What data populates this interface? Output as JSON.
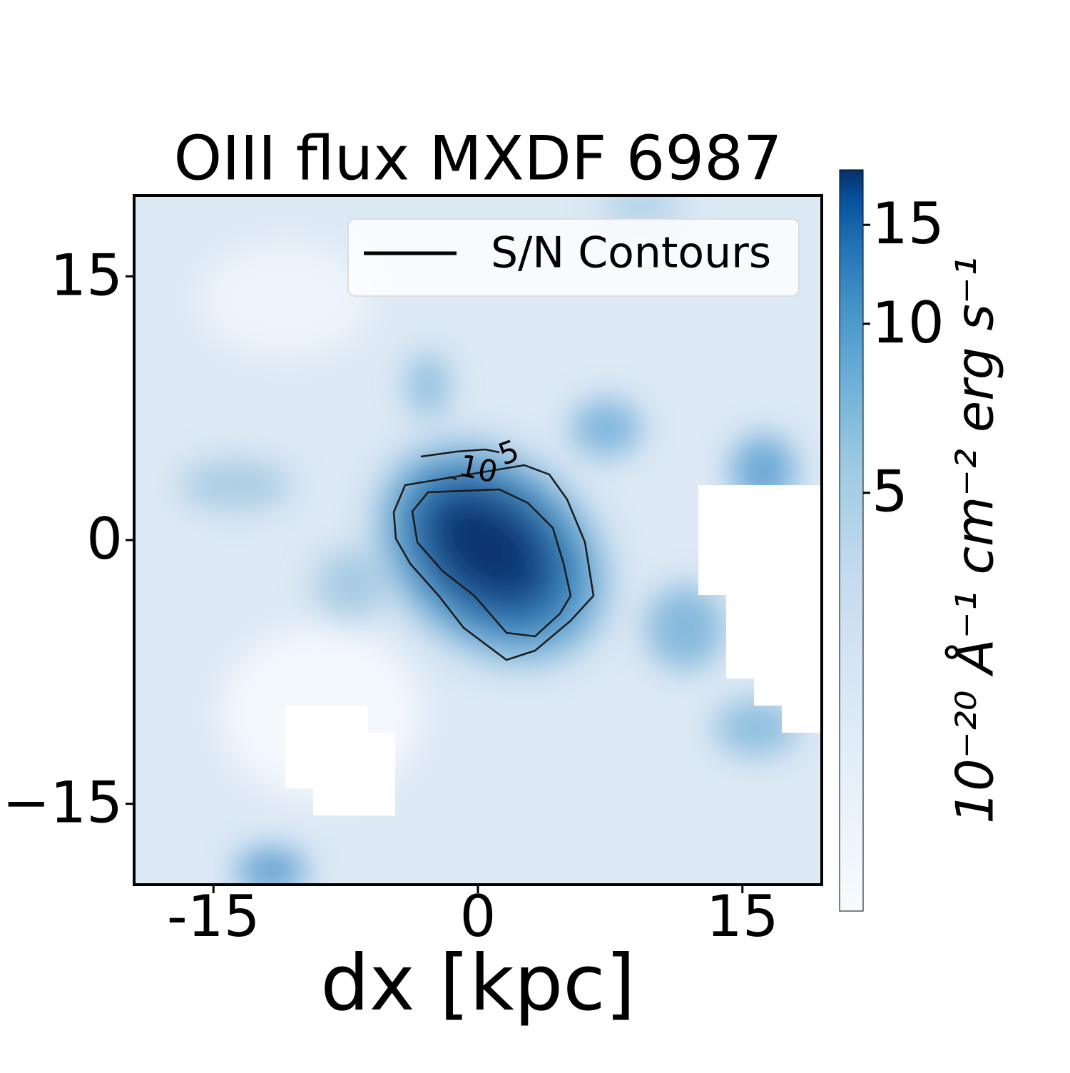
{
  "chart_data": {
    "type": "heatmap",
    "title": "OIII flux MXDF 6987",
    "x_label": "dx [kpc]",
    "xlim": [
      -19.5,
      19.5
    ],
    "xticks": [
      -15,
      0,
      15
    ],
    "ylim": [
      -19.6,
      19.6
    ],
    "yticks": [
      {
        "value": -15,
        "label": "−15"
      },
      0,
      15
    ],
    "colormap": "Blues",
    "colorbar": {
      "label": "10⁻²⁰ Å⁻¹ cm⁻² erg s⁻¹",
      "scale": "log",
      "lim": [
        0.9,
        18.8
      ],
      "ticks": [
        5,
        10,
        15
      ]
    },
    "contours": {
      "levels": [
        5,
        10
      ],
      "color": "#1a1a1a"
    },
    "legend": {
      "label": "S/N Contours",
      "loc": "upper right",
      "color": "#000000"
    }
  }
}
